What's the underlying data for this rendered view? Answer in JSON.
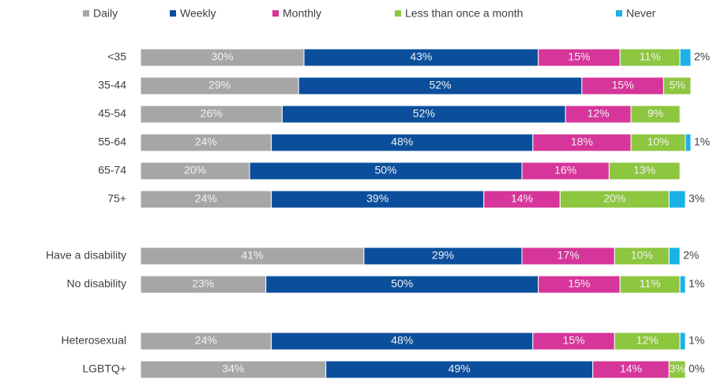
{
  "chart_data": {
    "type": "stacked-bar-horizontal",
    "categories": [
      "<35",
      "35-44",
      "45-54",
      "55-64",
      "65-74",
      "75+",
      null,
      "Have a disability",
      "No disability",
      null,
      "Heterosexual",
      "LGBTQ+"
    ],
    "legend": "top",
    "series": [
      {
        "name": "Daily",
        "color": "#a6a6a6",
        "values": [
          30,
          29,
          26,
          24,
          20,
          24,
          null,
          41,
          23,
          null,
          24,
          34
        ],
        "value_labels": [
          "30%",
          "29%",
          "26%",
          "24%",
          "20%",
          "24%",
          null,
          "41%",
          "23%",
          null,
          "24%",
          "34%"
        ]
      },
      {
        "name": "Weekly",
        "color": "#0b4f9c",
        "values": [
          43,
          52,
          52,
          48,
          50,
          39,
          null,
          29,
          50,
          null,
          48,
          49
        ],
        "value_labels": [
          "43%",
          "52%",
          "52%",
          "48%",
          "50%",
          "39%",
          null,
          "29%",
          "50%",
          null,
          "48%",
          "49%"
        ]
      },
      {
        "name": "Monthly",
        "color": "#d6359a",
        "values": [
          15,
          15,
          12,
          18,
          16,
          14,
          null,
          17,
          15,
          null,
          15,
          14
        ],
        "value_labels": [
          "15%",
          "15%",
          "12%",
          "18%",
          "16%",
          "14%",
          null,
          "17%",
          "15%",
          null,
          "15%",
          "14%"
        ]
      },
      {
        "name": "Less than once a month",
        "color": "#8dc63f",
        "values": [
          11,
          5,
          9,
          10,
          13,
          20,
          null,
          10,
          11,
          null,
          12,
          3
        ],
        "value_labels": [
          "11%",
          "5%",
          "9%",
          "10%",
          "13%",
          "20%",
          null,
          "10%",
          "11%",
          null,
          "12%",
          "3%"
        ]
      },
      {
        "name": "Never",
        "color": "#1bb1e7",
        "values": [
          2,
          0,
          0,
          1,
          0,
          3,
          null,
          2,
          1,
          null,
          1,
          0
        ],
        "value_labels": [
          "2%",
          null,
          null,
          "1%",
          null,
          "3%",
          null,
          "2%",
          "1%",
          null,
          "1%",
          "0%"
        ]
      }
    ]
  }
}
